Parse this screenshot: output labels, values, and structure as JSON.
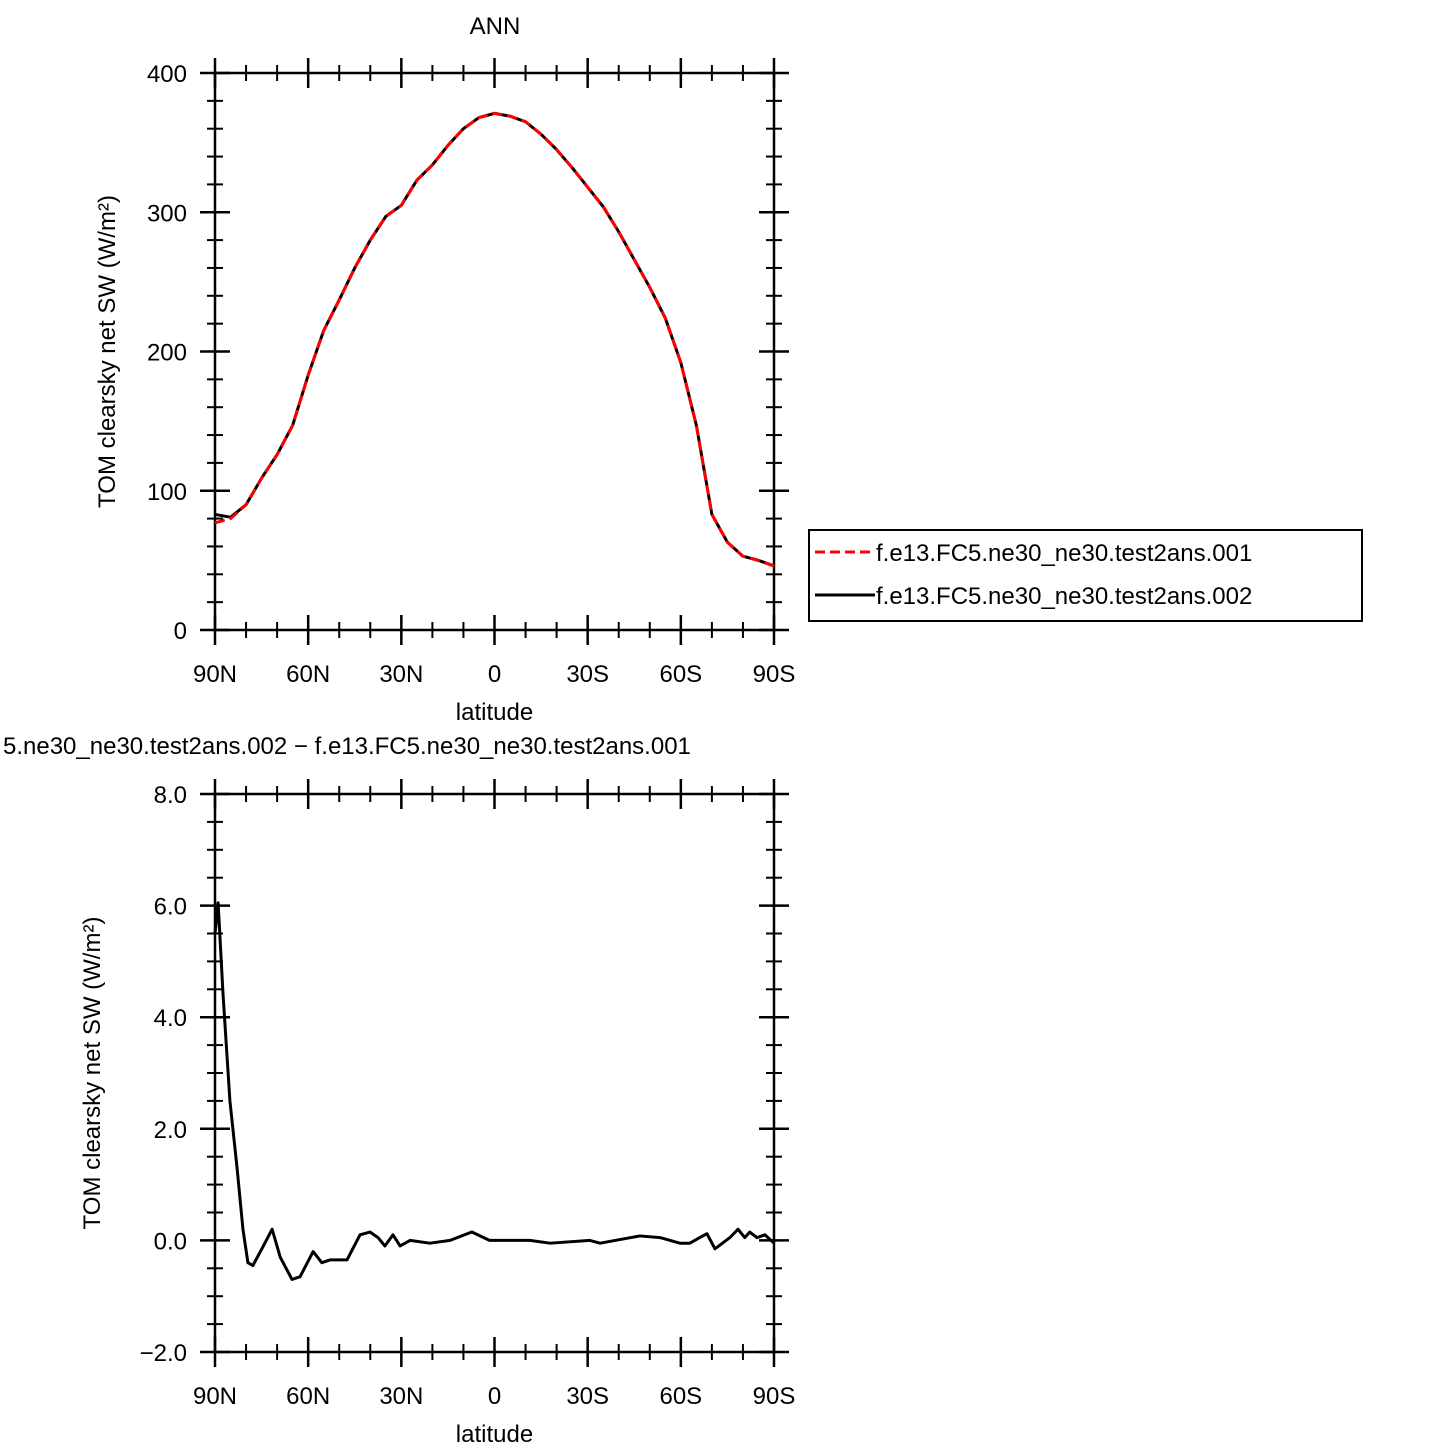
{
  "chart_data": [
    {
      "type": "line",
      "title": "ANN",
      "xlabel": "latitude",
      "ylabel": "TOM clearsky net SW (W/m²)",
      "x": [
        90,
        85,
        80,
        75,
        70,
        65,
        60,
        55,
        50,
        45,
        40,
        35,
        30,
        25,
        20,
        15,
        10,
        5,
        0,
        -5,
        -10,
        -15,
        -20,
        -25,
        -30,
        -35,
        -40,
        -45,
        -50,
        -55,
        -60,
        -65,
        -70,
        -75,
        -80,
        -85,
        -90
      ],
      "series": [
        {
          "name": "f.e13.FC5.ne30_ne30.test2ans.001",
          "color": "#ff0000",
          "linestyle": "dashed",
          "values": [
            77,
            80,
            90,
            109,
            126,
            147,
            183,
            215,
            237,
            260,
            280,
            297,
            305,
            323,
            334,
            348,
            360,
            368,
            371,
            369,
            365,
            356,
            345,
            332,
            318,
            304,
            286,
            266,
            246,
            224,
            192,
            147,
            83,
            63,
            53,
            50,
            46
          ]
        },
        {
          "name": "f.e13.FC5.ne30_ne30.test2ans.002",
          "color": "#000000",
          "linestyle": "solid",
          "values": [
            83,
            81,
            90,
            109,
            126,
            147,
            183,
            215,
            237,
            260,
            280,
            297,
            305,
            323,
            334,
            348,
            360,
            368,
            371,
            369,
            365,
            356,
            345,
            332,
            318,
            304,
            286,
            266,
            246,
            224,
            192,
            147,
            83,
            63,
            53,
            50,
            46
          ]
        }
      ],
      "xlim": [
        90,
        -90
      ],
      "xticks": [
        {
          "value": 90,
          "label": "90N"
        },
        {
          "value": 60,
          "label": "60N"
        },
        {
          "value": 30,
          "label": "30N"
        },
        0,
        {
          "value": -30,
          "label": "30S"
        },
        {
          "value": -60,
          "label": "60S"
        },
        {
          "value": -90,
          "label": "90S"
        }
      ],
      "ylim": [
        0,
        400
      ],
      "yticks": [
        0,
        100,
        200,
        300,
        400
      ],
      "xminor": 3,
      "yminor": 5,
      "legend": "right"
    },
    {
      "type": "line",
      "title": "5.ne30_ne30.test2ans.002 − f.e13.FC5.ne30_ne30.test2ans.001",
      "xlabel": "latitude",
      "ylabel": "TOM clearsky net SW (W/m²)",
      "x": [
        90,
        89,
        87.4,
        85.2,
        82.9,
        81,
        79.4,
        77.8,
        74.9,
        71.6,
        69,
        65.2,
        62.6,
        58.4,
        55.6,
        53,
        47.5,
        43.3,
        40.1,
        37.5,
        35.3,
        32.7,
        30.4,
        27.2,
        20.8,
        14.3,
        7.3,
        1.6,
        -11.4,
        -17.9,
        -30.7,
        -34,
        -46.8,
        -53.3,
        -59.7,
        -62.9,
        -66.1,
        -68.4,
        -71,
        -75.8,
        -78.4,
        -80.6,
        -82.2,
        -84.5,
        -87.1,
        -90
      ],
      "series": [
        {
          "color": "#000000",
          "linestyle": "solid",
          "values": [
            5.5,
            6.05,
            4.4,
            2.5,
            1.3,
            0.2,
            -0.4,
            -0.45,
            -0.15,
            0.2,
            -0.3,
            -0.7,
            -0.65,
            -0.2,
            -0.4,
            -0.35,
            -0.35,
            0.1,
            0.15,
            0.05,
            -0.1,
            0.1,
            -0.1,
            0.0,
            -0.05,
            0.0,
            0.15,
            0.0,
            0.0,
            -0.05,
            0.0,
            -0.05,
            0.08,
            0.05,
            -0.05,
            -0.05,
            0.05,
            0.12,
            -0.15,
            0.05,
            0.2,
            0.05,
            0.15,
            0.05,
            0.1,
            -0.05
          ]
        }
      ],
      "xlim": [
        90,
        -90
      ],
      "xticks": [
        {
          "value": 90,
          "label": "90N"
        },
        {
          "value": 60,
          "label": "60N"
        },
        {
          "value": 30,
          "label": "30N"
        },
        0,
        {
          "value": -30,
          "label": "30S"
        },
        {
          "value": -60,
          "label": "60S"
        },
        {
          "value": -90,
          "label": "90S"
        }
      ],
      "ylim": [
        -2,
        8
      ],
      "yticks": [
        {
          "value": -2,
          "label": "−2.0"
        },
        {
          "value": 0,
          "label": "0.0"
        },
        {
          "value": 2,
          "label": "2.0"
        },
        {
          "value": 4,
          "label": "4.0"
        },
        {
          "value": 6,
          "label": "6.0"
        },
        {
          "value": 8,
          "label": "8.0"
        }
      ],
      "xminor": 3,
      "yminor": 4
    }
  ]
}
